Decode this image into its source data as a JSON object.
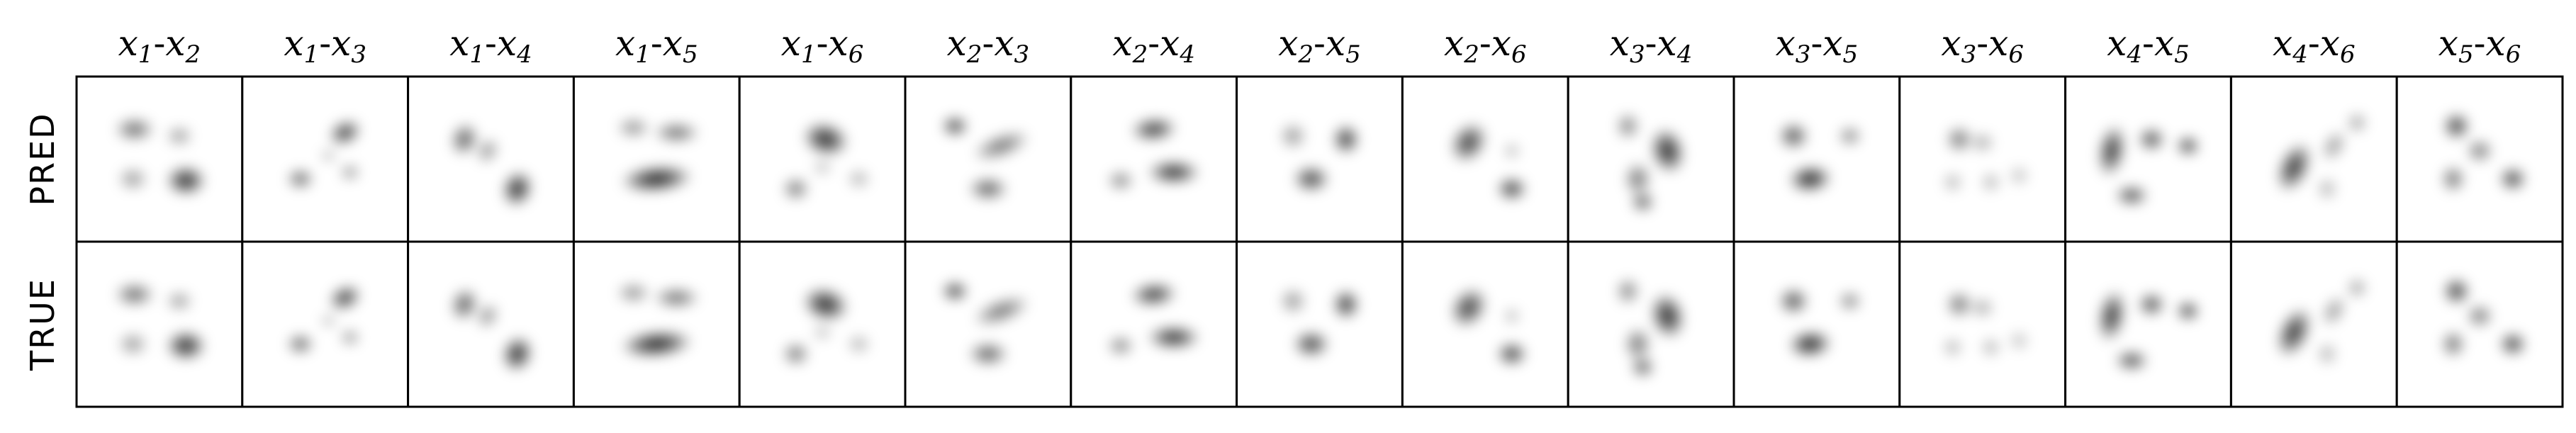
{
  "chart_data": {
    "type": "heatmap",
    "kind": "pairwise 2D marginal density grid (grayscale blobs)",
    "colormap": "greys (white = 0, black = high density)",
    "grid": false,
    "rows": [
      "PRED",
      "TRUE"
    ],
    "columns": [
      {
        "a": "1",
        "b": "2"
      },
      {
        "a": "1",
        "b": "3"
      },
      {
        "a": "1",
        "b": "4"
      },
      {
        "a": "1",
        "b": "5"
      },
      {
        "a": "1",
        "b": "6"
      },
      {
        "a": "2",
        "b": "3"
      },
      {
        "a": "2",
        "b": "4"
      },
      {
        "a": "2",
        "b": "5"
      },
      {
        "a": "2",
        "b": "6"
      },
      {
        "a": "3",
        "b": "4"
      },
      {
        "a": "3",
        "b": "5"
      },
      {
        "a": "3",
        "b": "6"
      },
      {
        "a": "4",
        "b": "5"
      },
      {
        "a": "4",
        "b": "6"
      },
      {
        "a": "5",
        "b": "6"
      }
    ],
    "variable_symbol": "x",
    "panels": [
      [
        [
          0.35,
          0.32,
          0.12,
          0.07,
          0.65,
          0
        ],
        [
          0.62,
          0.36,
          0.08,
          0.06,
          0.45,
          0
        ],
        [
          0.34,
          0.62,
          0.09,
          0.07,
          0.45,
          0
        ],
        [
          0.66,
          0.63,
          0.12,
          0.09,
          0.9,
          0
        ]
      ],
      [
        [
          0.62,
          0.34,
          0.1,
          0.07,
          0.85,
          -25
        ],
        [
          0.35,
          0.62,
          0.08,
          0.06,
          0.7,
          0
        ],
        [
          0.65,
          0.58,
          0.06,
          0.05,
          0.5,
          0
        ],
        [
          0.52,
          0.48,
          0.05,
          0.04,
          0.35,
          0
        ]
      ],
      [
        [
          0.34,
          0.38,
          0.08,
          0.1,
          0.7,
          20
        ],
        [
          0.48,
          0.45,
          0.06,
          0.08,
          0.5,
          30
        ],
        [
          0.66,
          0.68,
          0.09,
          0.11,
          0.9,
          20
        ]
      ],
      [
        [
          0.36,
          0.31,
          0.1,
          0.06,
          0.5,
          0
        ],
        [
          0.62,
          0.34,
          0.14,
          0.06,
          0.65,
          0
        ],
        [
          0.5,
          0.62,
          0.22,
          0.08,
          0.95,
          -5
        ]
      ],
      [
        [
          0.52,
          0.38,
          0.14,
          0.1,
          0.9,
          15
        ],
        [
          0.34,
          0.68,
          0.08,
          0.07,
          0.6,
          0
        ],
        [
          0.72,
          0.62,
          0.07,
          0.06,
          0.35,
          0
        ],
        [
          0.5,
          0.55,
          0.06,
          0.05,
          0.3,
          0
        ]
      ],
      [
        [
          0.3,
          0.3,
          0.08,
          0.06,
          0.85,
          0
        ],
        [
          0.58,
          0.42,
          0.18,
          0.07,
          0.6,
          -20
        ],
        [
          0.5,
          0.68,
          0.12,
          0.07,
          0.7,
          0
        ]
      ],
      [
        [
          0.5,
          0.32,
          0.14,
          0.07,
          0.85,
          -5
        ],
        [
          0.62,
          0.58,
          0.16,
          0.07,
          0.9,
          0
        ],
        [
          0.3,
          0.63,
          0.08,
          0.06,
          0.55,
          0
        ]
      ],
      [
        [
          0.34,
          0.36,
          0.08,
          0.08,
          0.45,
          0
        ],
        [
          0.66,
          0.38,
          0.08,
          0.09,
          0.85,
          0
        ],
        [
          0.45,
          0.62,
          0.11,
          0.08,
          0.8,
          0
        ]
      ],
      [
        [
          0.4,
          0.4,
          0.1,
          0.13,
          0.8,
          35
        ],
        [
          0.66,
          0.68,
          0.09,
          0.07,
          0.85,
          0
        ],
        [
          0.66,
          0.45,
          0.05,
          0.05,
          0.35,
          0
        ]
      ],
      [
        [
          0.36,
          0.3,
          0.07,
          0.08,
          0.55,
          0
        ],
        [
          0.6,
          0.45,
          0.1,
          0.14,
          0.9,
          -15
        ],
        [
          0.42,
          0.62,
          0.08,
          0.1,
          0.6,
          0
        ],
        [
          0.45,
          0.76,
          0.07,
          0.06,
          0.75,
          0
        ]
      ],
      [
        [
          0.36,
          0.36,
          0.09,
          0.08,
          0.75,
          0
        ],
        [
          0.7,
          0.36,
          0.07,
          0.06,
          0.55,
          0
        ],
        [
          0.46,
          0.62,
          0.13,
          0.08,
          0.95,
          -5
        ]
      ],
      [
        [
          0.36,
          0.38,
          0.08,
          0.08,
          0.6,
          0
        ],
        [
          0.5,
          0.4,
          0.07,
          0.06,
          0.4,
          0
        ],
        [
          0.32,
          0.64,
          0.06,
          0.06,
          0.35,
          0
        ],
        [
          0.55,
          0.64,
          0.06,
          0.06,
          0.35,
          0
        ],
        [
          0.72,
          0.6,
          0.06,
          0.06,
          0.3,
          0
        ]
      ],
      [
        [
          0.28,
          0.45,
          0.08,
          0.16,
          0.85,
          10
        ],
        [
          0.52,
          0.38,
          0.08,
          0.07,
          0.8,
          0
        ],
        [
          0.74,
          0.42,
          0.07,
          0.06,
          0.85,
          0
        ],
        [
          0.4,
          0.72,
          0.1,
          0.06,
          0.8,
          0
        ]
      ],
      [
        [
          0.38,
          0.55,
          0.09,
          0.16,
          0.85,
          25
        ],
        [
          0.62,
          0.42,
          0.06,
          0.1,
          0.45,
          30
        ],
        [
          0.76,
          0.28,
          0.06,
          0.06,
          0.45,
          0
        ],
        [
          0.58,
          0.68,
          0.06,
          0.07,
          0.35,
          0
        ]
      ],
      [
        [
          0.36,
          0.3,
          0.08,
          0.08,
          0.85,
          0
        ],
        [
          0.5,
          0.45,
          0.08,
          0.07,
          0.6,
          0
        ],
        [
          0.34,
          0.62,
          0.07,
          0.08,
          0.65,
          0
        ],
        [
          0.7,
          0.62,
          0.08,
          0.07,
          0.85,
          0
        ]
      ]
    ],
    "panel_blob_format": [
      "cx",
      "cy",
      "sx",
      "sy",
      "intensity",
      "angle_deg"
    ],
    "true_row_identical_to_pred": true
  }
}
